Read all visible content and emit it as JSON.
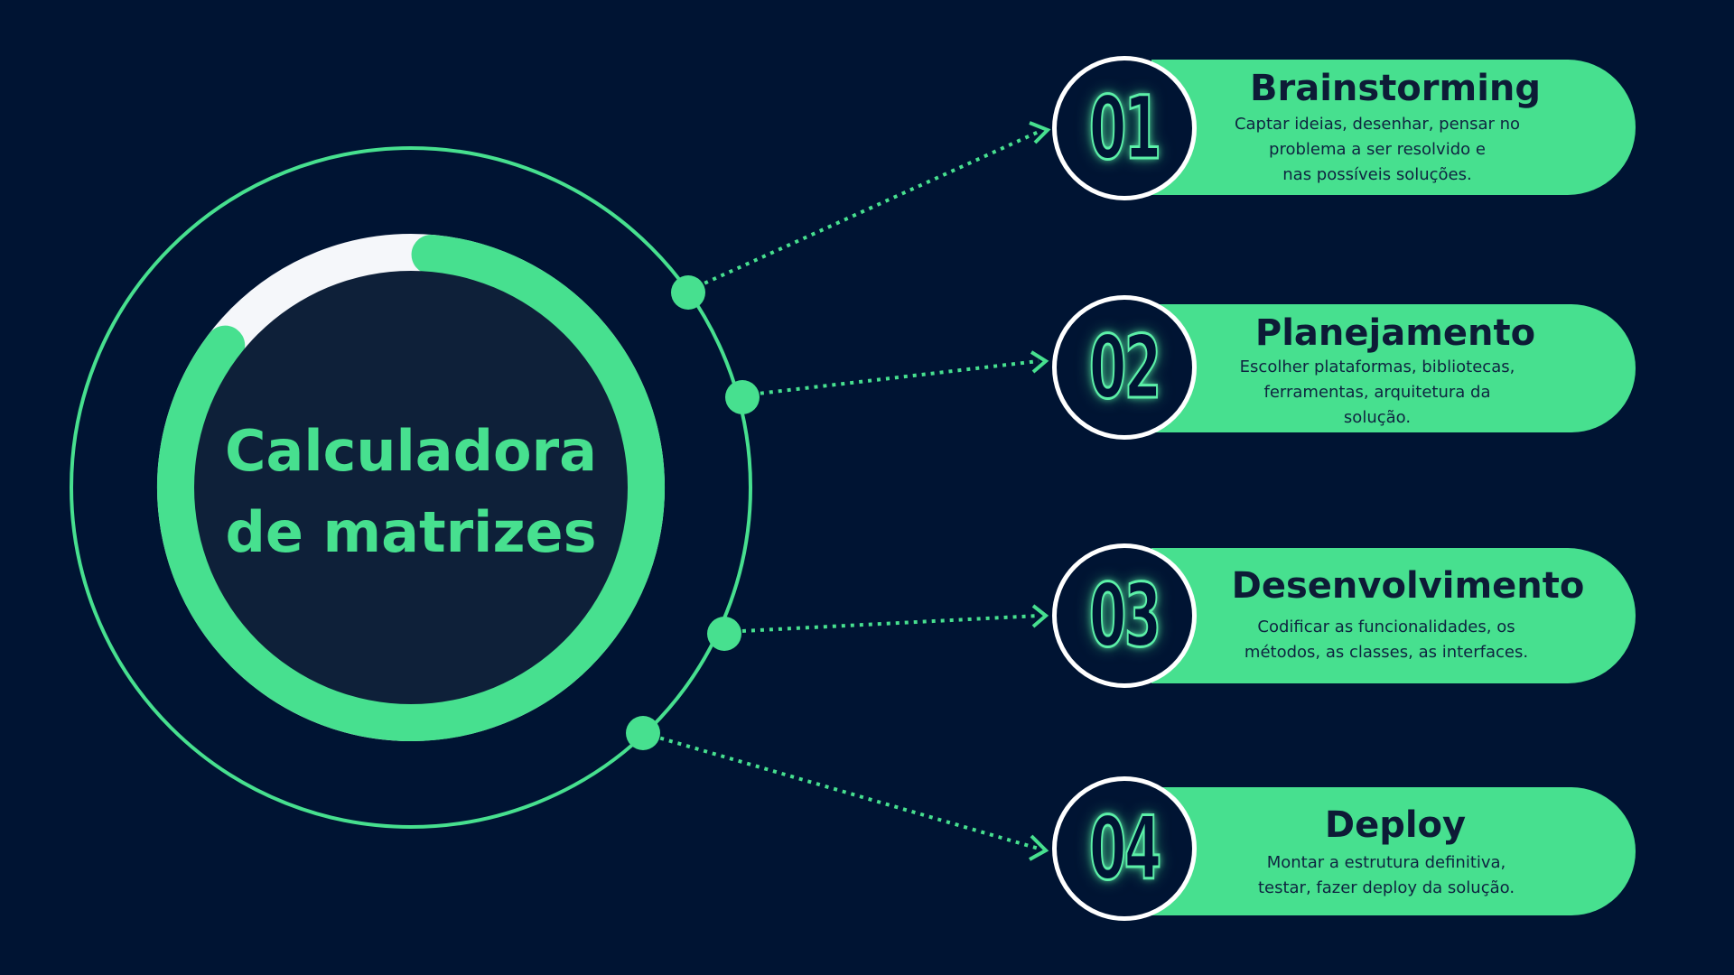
{
  "center": {
    "title_line1": "Calculadora",
    "title_line2": "de matrizes"
  },
  "colors": {
    "background": "#001433",
    "accent": "#47e08f",
    "inner_circle": "#0e2039",
    "arc_remainder": "#f5f7fa",
    "badge_border": "#ffffff",
    "card_text": "#0d1b36"
  },
  "progress_arc_fraction": 0.84,
  "steps": [
    {
      "number": "01",
      "title": "Brainstorming",
      "desc_lines": [
        "Captar ideias, desenhar, pensar no",
        "problema a ser resolvido e",
        "nas possíveis soluções."
      ]
    },
    {
      "number": "02",
      "title": "Planejamento",
      "desc_lines": [
        "Escolher plataformas, bibliotecas,",
        "ferramentas, arquitetura da",
        "solução."
      ]
    },
    {
      "number": "03",
      "title": "Desenvolvimento",
      "desc_lines": [
        "Codificar as funcionalidades, os",
        "métodos, as classes, as interfaces."
      ]
    },
    {
      "number": "04",
      "title": "Deploy",
      "desc_lines": [
        "Montar a estrutura definitiva,",
        "testar, fazer deploy da solução."
      ]
    }
  ]
}
